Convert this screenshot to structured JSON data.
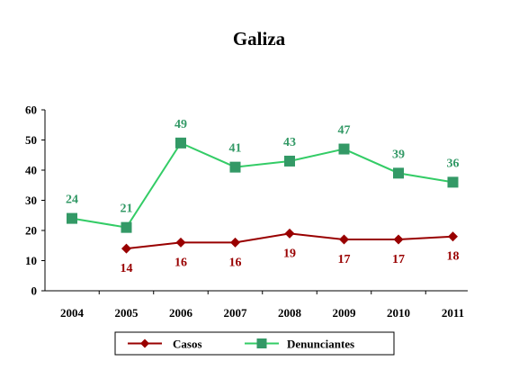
{
  "chart_data": {
    "type": "line",
    "title": "Galiza",
    "categories": [
      "2004",
      "2005",
      "2006",
      "2007",
      "2008",
      "2009",
      "2010",
      "2011"
    ],
    "ylim": [
      0,
      60
    ],
    "yticks": [
      0,
      10,
      20,
      30,
      40,
      50,
      60
    ],
    "grid": false,
    "legend_position": "bottom",
    "series": [
      {
        "name": "Casos",
        "color": "#990000",
        "marker": "diamond",
        "values": [
          null,
          14,
          16,
          16,
          19,
          17,
          17,
          18
        ],
        "labels": [
          "",
          "14",
          "16",
          "16",
          "19",
          "17",
          "17",
          "18"
        ]
      },
      {
        "name": "Denunciantes",
        "color": "#33CC66",
        "marker_color": "#339966",
        "marker": "square",
        "values": [
          24,
          21,
          49,
          41,
          43,
          47,
          39,
          36
        ],
        "labels": [
          "24",
          "21",
          "49",
          "41",
          "43",
          "47",
          "39",
          "36"
        ]
      }
    ]
  }
}
